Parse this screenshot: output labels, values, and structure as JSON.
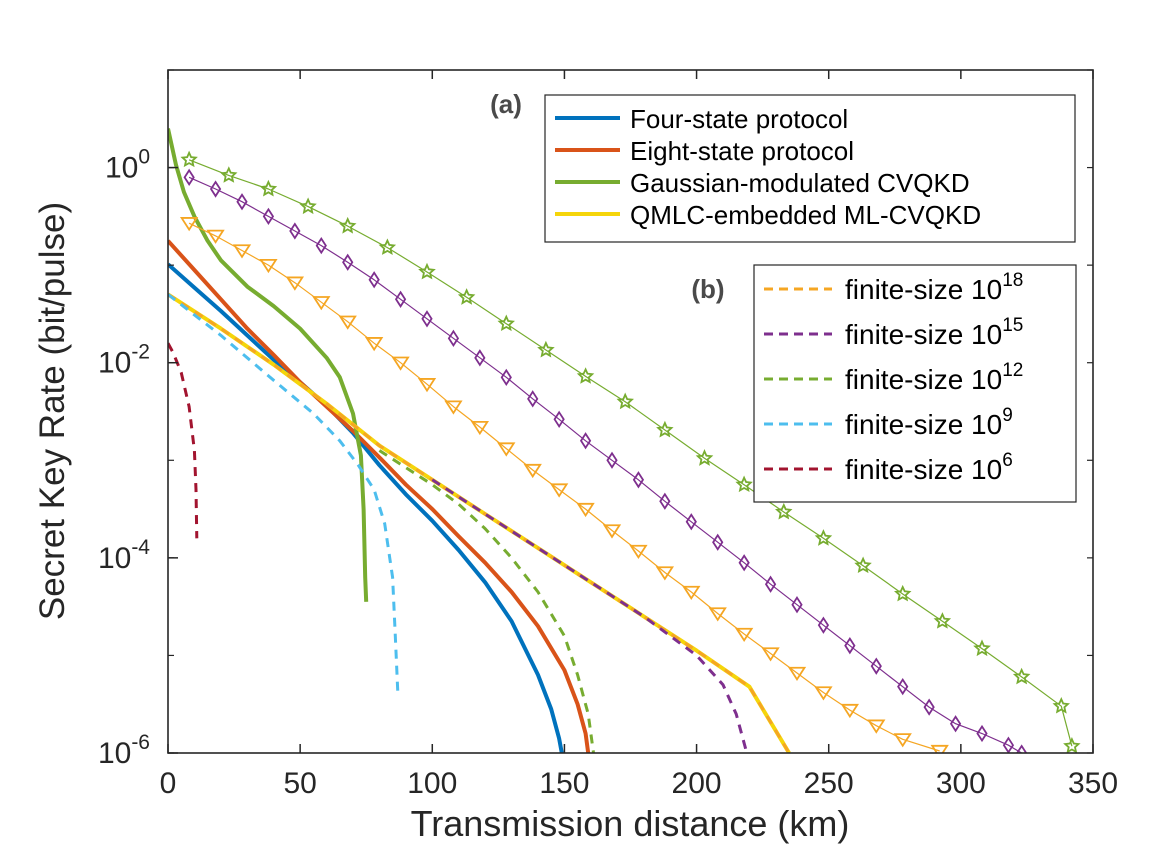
{
  "chart_data": {
    "type": "line",
    "title": "",
    "xlabel": "Transmission distance (km)",
    "ylabel": "Secret Key Rate (bit/pulse)",
    "xlim": [
      0,
      350
    ],
    "ylim_log10": [
      -6,
      1
    ],
    "x_ticks": [
      0,
      50,
      100,
      150,
      200,
      250,
      300,
      350
    ],
    "y_ticks": [
      {
        "base": "10",
        "exp": "0",
        "value_log10": 0
      },
      {
        "base": "10",
        "exp": "-2",
        "value_log10": -2
      },
      {
        "base": "10",
        "exp": "-4",
        "value_log10": -4
      },
      {
        "base": "10",
        "exp": "-6",
        "value_log10": -6
      }
    ],
    "panel_labels": {
      "a": "(a)",
      "b": "(b)"
    },
    "legend_a": [
      {
        "label": "Four-state protocol",
        "color": "#0072BD"
      },
      {
        "label": "Eight-state protocol",
        "color": "#D95319"
      },
      {
        "label": "Gaussian-modulated CVQKD",
        "color": "#77AC30"
      },
      {
        "label": "QMLC-embedded ML-CVQKD",
        "color": "#F5D50A"
      }
    ],
    "legend_b": [
      {
        "text": "finite-size 10",
        "exp": "18",
        "color": "#F5A623"
      },
      {
        "text": "finite-size 10",
        "exp": "15",
        "color": "#7E2F8E"
      },
      {
        "text": "finite-size 10",
        "exp": "12",
        "color": "#77AC30"
      },
      {
        "text": "finite-size 10",
        "exp": "9",
        "color": "#4DBEEE"
      },
      {
        "text": "finite-size 10",
        "exp": "6",
        "color": "#A2142F"
      }
    ],
    "series": [
      {
        "name": "Four-state protocol",
        "color": "#0072BD",
        "style": "solid",
        "width": 4,
        "points": [
          [
            0,
            -0.99
          ],
          [
            10,
            -1.23
          ],
          [
            20,
            -1.47
          ],
          [
            30,
            -1.72
          ],
          [
            40,
            -1.97
          ],
          [
            50,
            -2.2
          ],
          [
            60,
            -2.44
          ],
          [
            70,
            -2.72
          ],
          [
            80,
            -3.05
          ],
          [
            90,
            -3.35
          ],
          [
            100,
            -3.62
          ],
          [
            110,
            -3.92
          ],
          [
            120,
            -4.25
          ],
          [
            130,
            -4.65
          ],
          [
            140,
            -5.2
          ],
          [
            145,
            -5.55
          ],
          [
            148,
            -5.85
          ],
          [
            149,
            -6.0
          ]
        ]
      },
      {
        "name": "Eight-state protocol",
        "color": "#D95319",
        "style": "solid",
        "width": 4,
        "points": [
          [
            0,
            -0.75
          ],
          [
            10,
            -1.05
          ],
          [
            20,
            -1.35
          ],
          [
            30,
            -1.65
          ],
          [
            40,
            -1.92
          ],
          [
            50,
            -2.2
          ],
          [
            60,
            -2.45
          ],
          [
            70,
            -2.7
          ],
          [
            80,
            -2.97
          ],
          [
            90,
            -3.25
          ],
          [
            100,
            -3.5
          ],
          [
            110,
            -3.78
          ],
          [
            120,
            -4.05
          ],
          [
            130,
            -4.35
          ],
          [
            140,
            -4.7
          ],
          [
            150,
            -5.15
          ],
          [
            155,
            -5.5
          ],
          [
            158,
            -5.8
          ],
          [
            159,
            -6.0
          ]
        ]
      },
      {
        "name": "Gaussian-modulated CVQKD",
        "color": "#77AC30",
        "style": "solid",
        "width": 4,
        "points": [
          [
            0,
            0.4
          ],
          [
            3,
            0.03
          ],
          [
            6,
            -0.25
          ],
          [
            10,
            -0.5
          ],
          [
            15,
            -0.75
          ],
          [
            20,
            -0.95
          ],
          [
            30,
            -1.22
          ],
          [
            40,
            -1.42
          ],
          [
            50,
            -1.65
          ],
          [
            60,
            -1.95
          ],
          [
            65,
            -2.15
          ],
          [
            70,
            -2.52
          ],
          [
            73,
            -2.95
          ],
          [
            74,
            -3.5
          ],
          [
            74.6,
            -4.2
          ],
          [
            75,
            -4.45
          ]
        ]
      },
      {
        "name": "QMLC-embedded ML-CVQKD",
        "color": "#F5D50A",
        "style": "solid",
        "width": 4,
        "points": [
          [
            0,
            -1.3
          ],
          [
            20,
            -1.65
          ],
          [
            40,
            -2.02
          ],
          [
            60,
            -2.42
          ],
          [
            80,
            -2.85
          ],
          [
            100,
            -3.2
          ],
          [
            120,
            -3.55
          ],
          [
            140,
            -3.9
          ],
          [
            160,
            -4.25
          ],
          [
            180,
            -4.6
          ],
          [
            200,
            -4.95
          ],
          [
            220,
            -5.32
          ],
          [
            235,
            -6.0
          ]
        ]
      },
      {
        "name": "finite-size 10^18",
        "color": "#F5A623",
        "style": "dashed",
        "width": 3,
        "points": [
          [
            0,
            -1.3
          ],
          [
            20,
            -1.65
          ],
          [
            40,
            -2.02
          ],
          [
            60,
            -2.42
          ],
          [
            80,
            -2.85
          ],
          [
            100,
            -3.2
          ],
          [
            120,
            -3.55
          ],
          [
            140,
            -3.9
          ],
          [
            160,
            -4.25
          ],
          [
            180,
            -4.6
          ],
          [
            200,
            -4.95
          ],
          [
            220,
            -5.32
          ],
          [
            235,
            -6.0
          ]
        ]
      },
      {
        "name": "finite-size 10^15",
        "color": "#7E2F8E",
        "style": "dashed",
        "width": 3,
        "points": [
          [
            100,
            -3.2
          ],
          [
            120,
            -3.55
          ],
          [
            140,
            -3.9
          ],
          [
            160,
            -4.25
          ],
          [
            180,
            -4.6
          ],
          [
            200,
            -5.0
          ],
          [
            210,
            -5.3
          ],
          [
            215,
            -5.6
          ],
          [
            219,
            -6.0
          ]
        ]
      },
      {
        "name": "finite-size 10^12",
        "color": "#77AC30",
        "style": "dashed",
        "width": 3,
        "points": [
          [
            80,
            -2.9
          ],
          [
            100,
            -3.25
          ],
          [
            110,
            -3.45
          ],
          [
            120,
            -3.7
          ],
          [
            130,
            -4.0
          ],
          [
            140,
            -4.35
          ],
          [
            150,
            -4.8
          ],
          [
            155,
            -5.2
          ],
          [
            159,
            -5.6
          ],
          [
            161,
            -6.0
          ]
        ]
      },
      {
        "name": "finite-size 10^9",
        "color": "#4DBEEE",
        "style": "dashed",
        "width": 3,
        "points": [
          [
            0,
            -1.3
          ],
          [
            20,
            -1.72
          ],
          [
            40,
            -2.18
          ],
          [
            55,
            -2.52
          ],
          [
            65,
            -2.8
          ],
          [
            72,
            -3.05
          ],
          [
            78,
            -3.3
          ],
          [
            82,
            -3.65
          ],
          [
            85,
            -4.2
          ],
          [
            86,
            -4.8
          ],
          [
            87,
            -5.4
          ]
        ]
      },
      {
        "name": "finite-size 10^6",
        "color": "#A2142F",
        "style": "dashed",
        "width": 3,
        "points": [
          [
            0,
            -1.8
          ],
          [
            2,
            -1.9
          ],
          [
            5,
            -2.1
          ],
          [
            8,
            -2.45
          ],
          [
            10,
            -2.9
          ],
          [
            10.6,
            -3.3
          ],
          [
            10.9,
            -3.8
          ]
        ]
      },
      {
        "name": "stars",
        "color": "#77AC30",
        "style": "solid",
        "width": 1.2,
        "marker": "star",
        "points": [
          [
            8,
            0.08
          ],
          [
            23,
            -0.08
          ],
          [
            38,
            -0.22
          ],
          [
            53,
            -0.4
          ],
          [
            68,
            -0.6
          ],
          [
            83,
            -0.82
          ],
          [
            98,
            -1.07
          ],
          [
            113,
            -1.33
          ],
          [
            128,
            -1.6
          ],
          [
            143,
            -1.87
          ],
          [
            158,
            -2.14
          ],
          [
            173,
            -2.4
          ],
          [
            188,
            -2.69
          ],
          [
            203,
            -2.98
          ],
          [
            218,
            -3.25
          ],
          [
            233,
            -3.53
          ],
          [
            248,
            -3.8
          ],
          [
            263,
            -4.08
          ],
          [
            278,
            -4.37
          ],
          [
            293,
            -4.65
          ],
          [
            308,
            -4.93
          ],
          [
            323,
            -5.22
          ],
          [
            338,
            -5.52
          ],
          [
            342,
            -5.93
          ]
        ]
      },
      {
        "name": "diamonds",
        "color": "#7E2F8E",
        "style": "solid",
        "width": 1.2,
        "marker": "diamond",
        "points": [
          [
            8,
            -0.1
          ],
          [
            18,
            -0.22
          ],
          [
            28,
            -0.35
          ],
          [
            38,
            -0.5
          ],
          [
            48,
            -0.65
          ],
          [
            58,
            -0.8
          ],
          [
            68,
            -0.97
          ],
          [
            78,
            -1.15
          ],
          [
            88,
            -1.35
          ],
          [
            98,
            -1.55
          ],
          [
            108,
            -1.75
          ],
          [
            118,
            -1.95
          ],
          [
            128,
            -2.15
          ],
          [
            138,
            -2.37
          ],
          [
            148,
            -2.58
          ],
          [
            158,
            -2.8
          ],
          [
            168,
            -3.0
          ],
          [
            178,
            -3.2
          ],
          [
            188,
            -3.42
          ],
          [
            198,
            -3.63
          ],
          [
            208,
            -3.84
          ],
          [
            218,
            -4.05
          ],
          [
            228,
            -4.27
          ],
          [
            238,
            -4.48
          ],
          [
            248,
            -4.69
          ],
          [
            258,
            -4.9
          ],
          [
            268,
            -5.11
          ],
          [
            278,
            -5.32
          ],
          [
            288,
            -5.53
          ],
          [
            298,
            -5.7
          ],
          [
            308,
            -5.8
          ],
          [
            318,
            -5.92
          ],
          [
            323,
            -6.0
          ]
        ]
      },
      {
        "name": "triangles",
        "color": "#F5A623",
        "style": "solid",
        "width": 1.2,
        "marker": "triangle",
        "points": [
          [
            8,
            -0.57
          ],
          [
            18,
            -0.7
          ],
          [
            28,
            -0.85
          ],
          [
            38,
            -1.0
          ],
          [
            48,
            -1.18
          ],
          [
            58,
            -1.38
          ],
          [
            68,
            -1.58
          ],
          [
            78,
            -1.8
          ],
          [
            88,
            -2.0
          ],
          [
            98,
            -2.22
          ],
          [
            108,
            -2.45
          ],
          [
            118,
            -2.66
          ],
          [
            128,
            -2.88
          ],
          [
            138,
            -3.1
          ],
          [
            148,
            -3.3
          ],
          [
            158,
            -3.5
          ],
          [
            168,
            -3.72
          ],
          [
            178,
            -3.93
          ],
          [
            188,
            -4.15
          ],
          [
            198,
            -4.35
          ],
          [
            208,
            -4.57
          ],
          [
            218,
            -4.78
          ],
          [
            228,
            -4.98
          ],
          [
            238,
            -5.18
          ],
          [
            248,
            -5.38
          ],
          [
            258,
            -5.56
          ],
          [
            268,
            -5.72
          ],
          [
            278,
            -5.86
          ],
          [
            292,
            -5.98
          ]
        ]
      }
    ]
  }
}
